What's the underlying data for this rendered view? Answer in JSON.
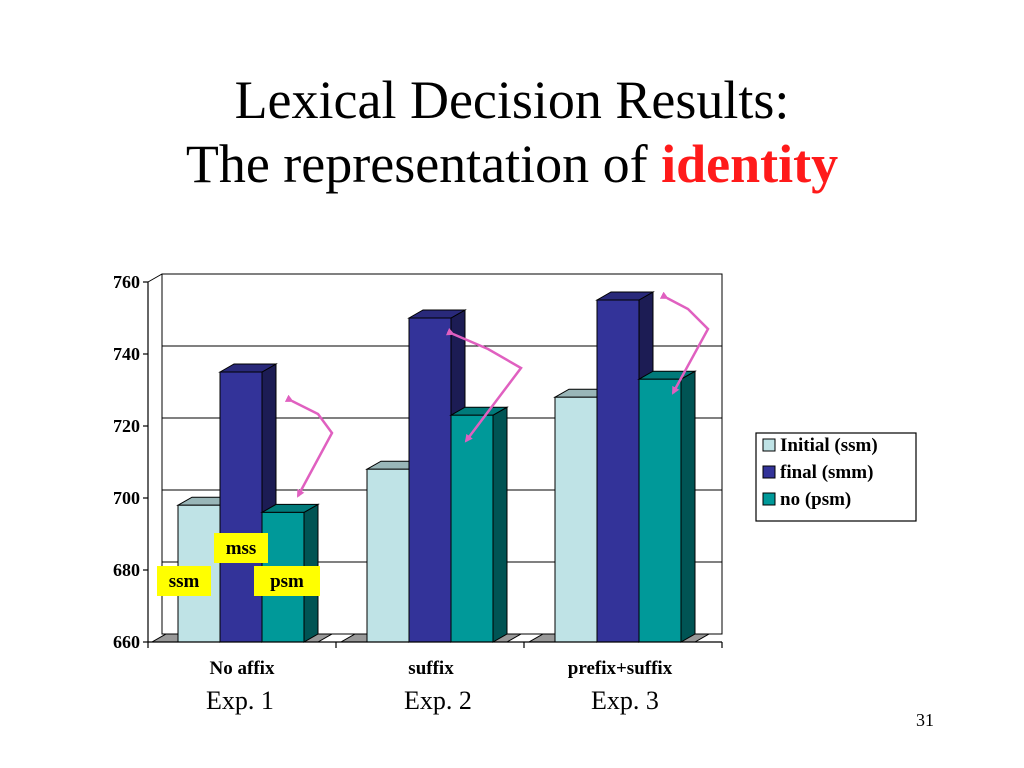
{
  "slide": {
    "title_line1": "Lexical Decision Results:",
    "title_line2_prefix": "The representation of",
    "title_line2_accent": "identity",
    "accent_color": "#ff1a1a",
    "page_number": "31"
  },
  "experiments": [
    "Exp. 1",
    "Exp. 2",
    "Exp. 3"
  ],
  "chart_data": {
    "type": "bar",
    "style": "3d-clustered",
    "categories": [
      "No affix",
      "suffix",
      "prefix+suffix"
    ],
    "series": [
      {
        "name": "Initial (ssm)",
        "color": "#bfe3e6",
        "values": [
          698,
          708,
          728
        ]
      },
      {
        "name": "final (smm)",
        "color": "#333399",
        "values": [
          735,
          750,
          755
        ]
      },
      {
        "name": "no (psm)",
        "color": "#009999",
        "values": [
          696,
          723,
          733
        ]
      }
    ],
    "ylim": [
      660,
      760
    ],
    "yticks": [
      660,
      680,
      700,
      720,
      740,
      760
    ],
    "grid": true,
    "legend": "right",
    "annotations": [
      {
        "text": "ssm",
        "background": "#ffff00"
      },
      {
        "text": "mss",
        "background": "#ffff00"
      },
      {
        "text": "psm",
        "background": "#ffff00"
      }
    ],
    "arrow_color": "#e060c0"
  }
}
